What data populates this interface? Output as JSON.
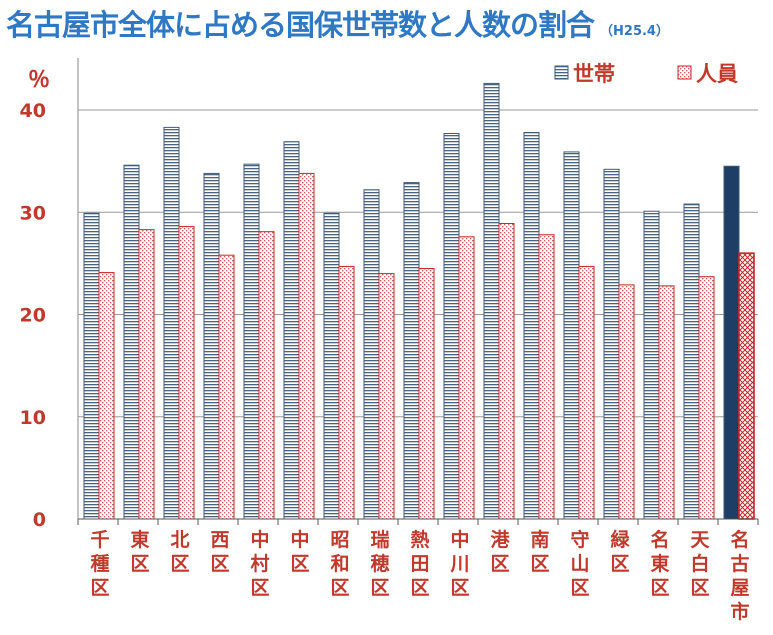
{
  "title": "名古屋市全体に占める国保世帯数と人数の割合",
  "subtitle": "（H25.4）",
  "unit": "％",
  "colors": {
    "households_stroke": "#3b5a78",
    "persons_stroke": "#c62828",
    "total_households_fill": "#1f3e66",
    "tick_text": "#c0392b",
    "title": "#2f78c4"
  },
  "chart_data": {
    "type": "bar",
    "title": "名古屋市全体に占める国保世帯数と人数の割合",
    "ylabel": "％",
    "ylim": [
      0,
      40
    ],
    "yticks": [
      "0",
      "10",
      "20",
      "30",
      "40"
    ],
    "grid": true,
    "legend_position": "top-right",
    "categories": [
      "千種区",
      "東区",
      "北区",
      "西区",
      "中村区",
      "中区",
      "昭和区",
      "瑞穂区",
      "熱田区",
      "中川区",
      "港区",
      "南区",
      "守山区",
      "緑区",
      "名東区",
      "天白区",
      "名古屋市"
    ],
    "series": [
      {
        "name": "世帯",
        "values": [
          29.9,
          34.6,
          38.3,
          33.8,
          34.7,
          36.9,
          29.9,
          32.2,
          32.9,
          37.7,
          42.6,
          37.8,
          35.9,
          34.2,
          30.1,
          30.8,
          34.5
        ]
      },
      {
        "name": "人員",
        "values": [
          24.1,
          28.3,
          28.6,
          25.8,
          28.1,
          33.8,
          24.7,
          24.0,
          24.5,
          27.6,
          28.9,
          27.8,
          24.7,
          22.9,
          22.8,
          23.7,
          26.0
        ]
      }
    ]
  }
}
